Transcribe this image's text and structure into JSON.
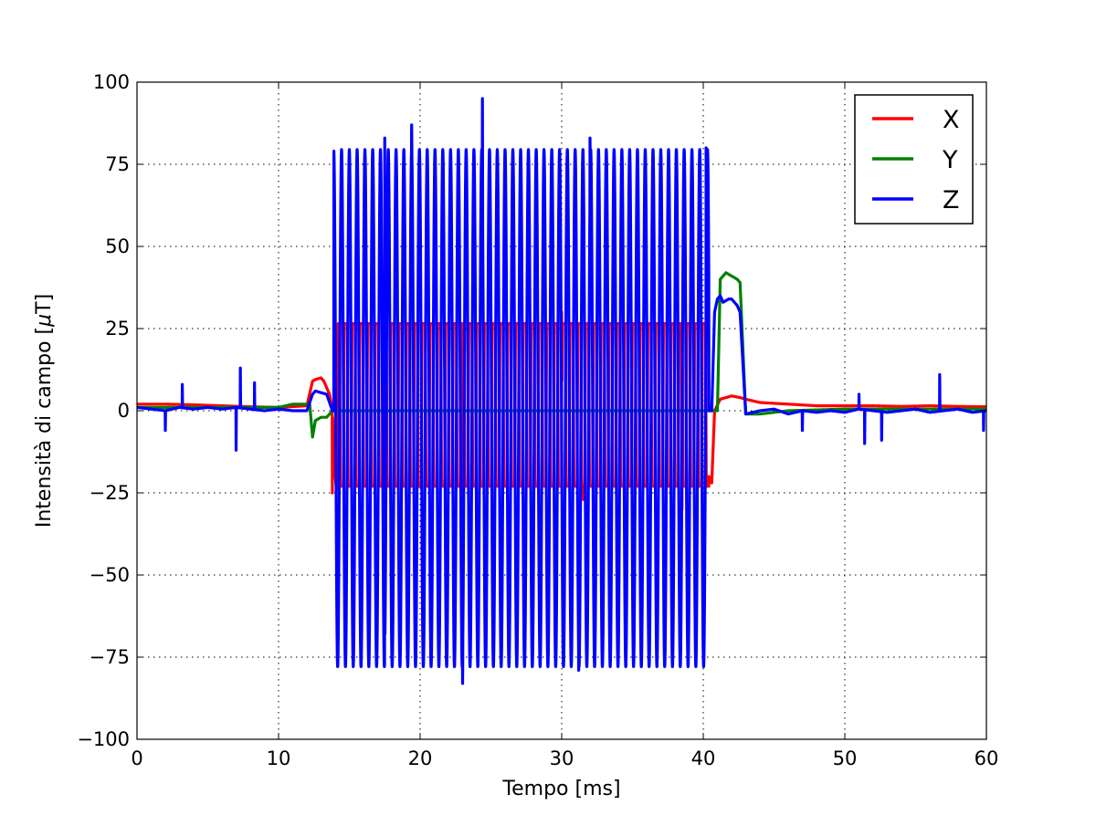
{
  "chart_data": {
    "type": "line",
    "title": "",
    "xlabel": "Tempo [ms]",
    "ylabel_prefix": "Intensità di campo [",
    "ylabel_mu": "μ",
    "ylabel_suffix": "T]",
    "xlim": [
      0,
      60
    ],
    "ylim": [
      -100,
      100
    ],
    "xticks": [
      0,
      10,
      20,
      30,
      40,
      50,
      60
    ],
    "xtick_labels": [
      "0",
      "10",
      "20",
      "30",
      "40",
      "50",
      "60"
    ],
    "yticks": [
      -100,
      -75,
      -50,
      -25,
      0,
      25,
      50,
      75,
      100
    ],
    "ytick_labels": [
      "−100",
      "−75",
      "−50",
      "−25",
      "0",
      "25",
      "50",
      "75",
      "100"
    ],
    "grid": true,
    "legend_position": "top-right",
    "series": [
      {
        "name": "X",
        "color": "#ff0000",
        "x": [
          0,
          2,
          4,
          6,
          8,
          10,
          12,
          12.4,
          12.6,
          13.0,
          13.2,
          13.6,
          13.8,
          14.0,
          14.1,
          14.4,
          15.0,
          16.0,
          18.0,
          20.0,
          22.0,
          24.0,
          26.0,
          28.0,
          30.0,
          32.0,
          34.0,
          36.0,
          38.0,
          40.0,
          40.4,
          40.6,
          40.8,
          41.2,
          41.6,
          42.0,
          42.6,
          43.0,
          44.0,
          46.0,
          48.0,
          50.0,
          52.0,
          54.0,
          56.0,
          58.0,
          60.0
        ],
        "y": [
          2.0,
          2.0,
          1.8,
          1.5,
          1.2,
          1.0,
          1.5,
          9.0,
          9.5,
          10.0,
          9.0,
          5.0,
          0.0,
          -20.0,
          -24.0,
          25.0,
          26.0,
          26.0,
          26.0,
          26.0,
          26.0,
          26.0,
          26.0,
          26.0,
          26.0,
          26.0,
          26.0,
          26.0,
          26.0,
          26.0,
          -20.0,
          -22.0,
          0.0,
          3.5,
          4.0,
          4.5,
          4.0,
          3.5,
          2.5,
          2.0,
          1.5,
          1.5,
          1.5,
          1.3,
          1.5,
          1.3,
          1.2
        ],
        "osc_period_ms": 0.55,
        "osc_start_ms": 14.2,
        "osc_end_ms": 40.4,
        "osc_max": 26.5,
        "osc_min": -23.0,
        "spikes": [
          [
            13.8,
            -25.0
          ],
          [
            23.0,
            -30.0
          ],
          [
            30.0,
            30.0
          ],
          [
            31.5,
            -27.0
          ],
          [
            38.5,
            -30.0
          ]
        ]
      },
      {
        "name": "Y",
        "color": "#008000",
        "x": [
          0,
          2,
          4,
          6,
          8,
          10,
          11.0,
          12.2,
          12.4,
          12.6,
          13.0,
          13.4,
          13.8,
          41.0,
          41.2,
          41.6,
          42.0,
          42.4,
          42.6,
          43.0,
          44.0,
          46.0,
          50.0,
          55.0,
          60.0
        ],
        "y": [
          1.0,
          1.0,
          1.0,
          1.0,
          1.0,
          1.0,
          2.0,
          2.0,
          -8.0,
          -3.0,
          -2.0,
          -2.0,
          0.0,
          0.0,
          40.0,
          42.0,
          41.0,
          40.0,
          39.0,
          -1.0,
          -1.0,
          0.0,
          0.5,
          0.5,
          0.5
        ]
      },
      {
        "name": "Z",
        "color": "#0000ff",
        "x": [
          0,
          1,
          2,
          3,
          4,
          5,
          6,
          7,
          8,
          9,
          10,
          11,
          12,
          12.4,
          12.6,
          13.0,
          13.4,
          13.8,
          40.6,
          40.8,
          41.0,
          41.2,
          41.4,
          41.8,
          42.0,
          42.4,
          42.6,
          43.0,
          44.0,
          45.0,
          46.0,
          47.0,
          48.0,
          49.0,
          50.0,
          51.0,
          52.0,
          53.0,
          54.0,
          55.0,
          56.0,
          57.0,
          58.0,
          59.0,
          60.0
        ],
        "y": [
          1.0,
          0.5,
          0.0,
          1.0,
          0.5,
          1.0,
          0.5,
          1.0,
          0.5,
          0.0,
          0.5,
          0.0,
          0.0,
          5.0,
          6.0,
          5.5,
          5.0,
          0.0,
          0.0,
          30.0,
          34.0,
          35.0,
          33.0,
          34.0,
          34.0,
          32.0,
          30.0,
          -1.0,
          0.0,
          0.5,
          -1.0,
          0.0,
          -0.5,
          0.0,
          -0.5,
          0.5,
          0.0,
          -0.5,
          0.0,
          0.5,
          -0.5,
          0.0,
          0.5,
          -0.5,
          0.0
        ],
        "osc_period_ms": 0.55,
        "osc_start_ms": 13.9,
        "osc_end_ms": 40.4,
        "osc_max": 79.5,
        "osc_min": -78.0,
        "spikes": [
          [
            2.0,
            -6.0
          ],
          [
            3.2,
            8.0
          ],
          [
            7.0,
            -12.0
          ],
          [
            7.3,
            13.0
          ],
          [
            8.3,
            8.5
          ],
          [
            17.5,
            83.0
          ],
          [
            19.4,
            87.0
          ],
          [
            23.0,
            -83.0
          ],
          [
            24.4,
            95.0
          ],
          [
            31.2,
            -79.0
          ],
          [
            32.0,
            83.0
          ],
          [
            40.2,
            80.0
          ],
          [
            47.0,
            -6.0
          ],
          [
            51.0,
            5.0
          ],
          [
            51.4,
            -10.0
          ],
          [
            52.6,
            -9.0
          ],
          [
            56.7,
            11.0
          ],
          [
            59.8,
            -6.0
          ]
        ]
      }
    ]
  }
}
